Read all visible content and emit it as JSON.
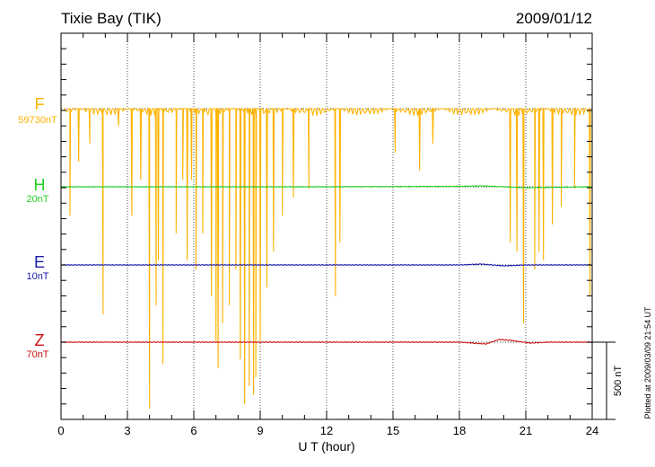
{
  "header": {
    "station": "Tixie Bay (TIK)",
    "date": "2009/01/12"
  },
  "plotted_note": "Plotted at 2009/03/09 21:54 UT",
  "scale_bar_label": "500 nT",
  "chart_data": {
    "type": "line",
    "xlabel": "U T (hour)",
    "xlim": [
      0,
      24
    ],
    "xticks": [
      "0",
      "3",
      "6",
      "9",
      "12",
      "15",
      "18",
      "21",
      "24"
    ],
    "grid": "dotted vertical every 3 hours",
    "series": [
      {
        "name": "F",
        "baseline_label": "59730nT",
        "color": "#ffb300",
        "note": "baseline near top; frequent large negative spikes",
        "spikes": [
          [
            0.4,
            240
          ],
          [
            0.8,
            180
          ],
          [
            1.3,
            160
          ],
          [
            1.9,
            350
          ],
          [
            2.6,
            140
          ],
          [
            3.2,
            240
          ],
          [
            3.6,
            200
          ],
          [
            4.0,
            455
          ],
          [
            4.3,
            340
          ],
          [
            4.4,
            290
          ],
          [
            4.6,
            405
          ],
          [
            5.2,
            260
          ],
          [
            5.5,
            200
          ],
          [
            5.7,
            290
          ],
          [
            5.9,
            200
          ],
          [
            6.1,
            300
          ],
          [
            6.4,
            260
          ],
          [
            6.8,
            330
          ],
          [
            7.0,
            380
          ],
          [
            7.1,
            410
          ],
          [
            7.3,
            360
          ],
          [
            7.6,
            340
          ],
          [
            7.9,
            300
          ],
          [
            8.1,
            400
          ],
          [
            8.3,
            450
          ],
          [
            8.5,
            430
          ],
          [
            8.7,
            440
          ],
          [
            8.8,
            420
          ],
          [
            9.0,
            380
          ],
          [
            9.3,
            320
          ],
          [
            9.6,
            280
          ],
          [
            10.0,
            240
          ],
          [
            10.5,
            220
          ],
          [
            11.2,
            210
          ],
          [
            12.4,
            330
          ],
          [
            12.6,
            270
          ],
          [
            15.1,
            170
          ],
          [
            16.2,
            190
          ],
          [
            16.8,
            160
          ],
          [
            20.3,
            270
          ],
          [
            20.6,
            280
          ],
          [
            20.9,
            360
          ],
          [
            21.4,
            300
          ],
          [
            21.6,
            280
          ],
          [
            21.8,
            290
          ],
          [
            22.2,
            250
          ],
          [
            22.6,
            230
          ],
          [
            23.2,
            210
          ],
          [
            23.9,
            330
          ]
        ]
      },
      {
        "name": "H",
        "baseline_label": "20nT",
        "color": "#22cc22",
        "values_t": [
          0,
          6,
          12,
          18,
          19,
          20,
          21,
          24
        ],
        "values_offset": [
          0,
          0,
          0,
          0.5,
          1,
          0,
          -1,
          0
        ]
      },
      {
        "name": "E",
        "baseline_label": "10nT",
        "color": "#1a1aa8",
        "values_t": [
          0,
          6,
          12,
          18,
          19,
          20,
          21,
          24
        ],
        "values_offset": [
          0,
          0,
          0,
          0,
          1,
          -1,
          0,
          0
        ]
      },
      {
        "name": "Z",
        "baseline_label": "70nT",
        "color": "#cc1111",
        "values_t": [
          0,
          6,
          12,
          18,
          19.2,
          19.8,
          20.3,
          21.2,
          22,
          24
        ],
        "values_offset": [
          0,
          0,
          0,
          0,
          -2,
          3,
          2,
          -1,
          0,
          0
        ]
      }
    ]
  }
}
